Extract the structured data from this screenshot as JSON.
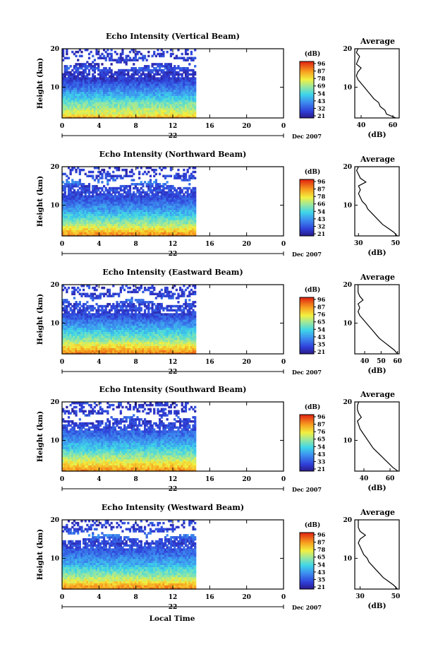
{
  "figure": {
    "bottom_label": "Local Time",
    "date_label": "Dec 2007",
    "day_label": "22"
  },
  "chart_data": [
    {
      "type": "heatmap",
      "title": "Echo Intensity (Vertical Beam)",
      "ylabel": "Height (km)",
      "x_ticks": [
        "0",
        "4",
        "8",
        "12",
        "16",
        "20",
        "0"
      ],
      "y_ticks": [
        "20",
        "10"
      ],
      "xlim": [
        0,
        24
      ],
      "ylim": [
        2,
        20
      ],
      "data_end_hour": 14.5,
      "colorbar_unit": "(dB)",
      "colorbar_ticks": [
        "96",
        "87",
        "78",
        "69",
        "54",
        "43",
        "32",
        "21"
      ],
      "avg": {
        "title": "Average",
        "xlabel": "(dB)",
        "x_ticks": [
          "40",
          "60"
        ],
        "y_ticks": [
          "20",
          "10"
        ],
        "xlim": [
          36,
          64
        ],
        "profile": [
          [
            62,
            2
          ],
          [
            56,
            3
          ],
          [
            55,
            4
          ],
          [
            52,
            5
          ],
          [
            51,
            6
          ],
          [
            48,
            7
          ],
          [
            46,
            8
          ],
          [
            44,
            9
          ],
          [
            42,
            10
          ],
          [
            40,
            11
          ],
          [
            38,
            12
          ],
          [
            37,
            13
          ],
          [
            38,
            14
          ],
          [
            40,
            15
          ],
          [
            37,
            16
          ],
          [
            38,
            17
          ],
          [
            39,
            18
          ],
          [
            37,
            19
          ],
          [
            38,
            20
          ]
        ]
      }
    },
    {
      "type": "heatmap",
      "title": "Echo Intensity (Northward Beam)",
      "ylabel": "Height (km)",
      "x_ticks": [
        "0",
        "4",
        "8",
        "12",
        "16",
        "20",
        "0"
      ],
      "y_ticks": [
        "20",
        "10"
      ],
      "xlim": [
        0,
        24
      ],
      "ylim": [
        2,
        20
      ],
      "data_end_hour": 14.5,
      "colorbar_unit": "(dB)",
      "colorbar_ticks": [
        "96",
        "87",
        "78",
        "66",
        "54",
        "43",
        "32",
        "21"
      ],
      "avg": {
        "title": "Average",
        "xlabel": "(dB)",
        "x_ticks": [
          "30",
          "50"
        ],
        "y_ticks": [
          "20",
          "10"
        ],
        "xlim": [
          28,
          52
        ],
        "profile": [
          [
            51,
            2
          ],
          [
            49,
            3
          ],
          [
            46,
            4
          ],
          [
            43,
            5
          ],
          [
            41,
            6
          ],
          [
            39,
            7
          ],
          [
            37,
            8
          ],
          [
            35,
            9
          ],
          [
            34,
            10
          ],
          [
            32,
            11
          ],
          [
            31,
            12
          ],
          [
            30,
            13
          ],
          [
            31,
            14
          ],
          [
            30,
            15
          ],
          [
            34,
            16
          ],
          [
            31,
            17
          ],
          [
            30,
            18
          ],
          [
            29,
            19
          ],
          [
            30,
            20
          ]
        ]
      }
    },
    {
      "type": "heatmap",
      "title": "Echo Intensity (Eastward Beam)",
      "ylabel": "Height (km)",
      "x_ticks": [
        "0",
        "4",
        "8",
        "12",
        "16",
        "20",
        "0"
      ],
      "y_ticks": [
        "20",
        "10"
      ],
      "xlim": [
        0,
        24
      ],
      "ylim": [
        2,
        20
      ],
      "data_end_hour": 14.5,
      "colorbar_unit": "(dB)",
      "colorbar_ticks": [
        "96",
        "87",
        "76",
        "65",
        "54",
        "43",
        "35",
        "21"
      ],
      "avg": {
        "title": "Average",
        "xlabel": "(dB)",
        "x_ticks": [
          "40",
          "50",
          "60"
        ],
        "y_ticks": [
          "20",
          "10"
        ],
        "xlim": [
          34,
          61
        ],
        "profile": [
          [
            60,
            2
          ],
          [
            58,
            3
          ],
          [
            55,
            4
          ],
          [
            52,
            5
          ],
          [
            49,
            6
          ],
          [
            47,
            7
          ],
          [
            45,
            8
          ],
          [
            43,
            9
          ],
          [
            41,
            10
          ],
          [
            39,
            11
          ],
          [
            37,
            12
          ],
          [
            36,
            13
          ],
          [
            37,
            14
          ],
          [
            36,
            15
          ],
          [
            39,
            16
          ],
          [
            37,
            17
          ],
          [
            36,
            18
          ],
          [
            36,
            19
          ],
          [
            36,
            20
          ]
        ]
      }
    },
    {
      "type": "heatmap",
      "title": "Echo Intensity (Southward Beam)",
      "ylabel": "Height (km)",
      "x_ticks": [
        "0",
        "4",
        "8",
        "12",
        "16",
        "20",
        "0"
      ],
      "y_ticks": [
        "20",
        "10"
      ],
      "xlim": [
        0,
        24
      ],
      "ylim": [
        2,
        20
      ],
      "data_end_hour": 14.5,
      "colorbar_unit": "(dB)",
      "colorbar_ticks": [
        "96",
        "87",
        "76",
        "65",
        "54",
        "43",
        "33",
        "21"
      ],
      "avg": {
        "title": "Average",
        "xlabel": "(dB)",
        "x_ticks": [
          "40",
          "60"
        ],
        "y_ticks": [
          "20",
          "10"
        ],
        "xlim": [
          33,
          67
        ],
        "profile": [
          [
            66,
            2
          ],
          [
            62,
            3
          ],
          [
            59,
            4
          ],
          [
            56,
            5
          ],
          [
            53,
            6
          ],
          [
            50,
            7
          ],
          [
            47,
            8
          ],
          [
            45,
            9
          ],
          [
            43,
            10
          ],
          [
            41,
            11
          ],
          [
            39,
            12
          ],
          [
            37,
            13
          ],
          [
            36,
            14
          ],
          [
            35,
            15
          ],
          [
            38,
            16
          ],
          [
            36,
            17
          ],
          [
            35,
            18
          ],
          [
            35,
            19
          ],
          [
            36,
            20
          ]
        ]
      }
    },
    {
      "type": "heatmap",
      "title": "Echo Intensity (Westward Beam)",
      "ylabel": "Height (km)",
      "x_ticks": [
        "0",
        "4",
        "8",
        "12",
        "16",
        "20",
        "0"
      ],
      "y_ticks": [
        "20",
        "10"
      ],
      "xlim": [
        0,
        24
      ],
      "ylim": [
        2,
        20
      ],
      "data_end_hour": 14.5,
      "colorbar_unit": "(dB)",
      "colorbar_ticks": [
        "96",
        "87",
        "78",
        "65",
        "54",
        "43",
        "35",
        "21"
      ],
      "avg": {
        "title": "Average",
        "xlabel": "(dB)",
        "x_ticks": [
          "30",
          "50"
        ],
        "y_ticks": [
          "20",
          "10"
        ],
        "xlim": [
          27,
          52
        ],
        "profile": [
          [
            51,
            2
          ],
          [
            49,
            3
          ],
          [
            46,
            4
          ],
          [
            43,
            5
          ],
          [
            41,
            6
          ],
          [
            39,
            7
          ],
          [
            37,
            8
          ],
          [
            35,
            9
          ],
          [
            34,
            10
          ],
          [
            32,
            11
          ],
          [
            31,
            12
          ],
          [
            30,
            13
          ],
          [
            29,
            14
          ],
          [
            30,
            15
          ],
          [
            33,
            16
          ],
          [
            30,
            17
          ],
          [
            29,
            18
          ],
          [
            29,
            19
          ],
          [
            29,
            20
          ]
        ]
      }
    }
  ]
}
